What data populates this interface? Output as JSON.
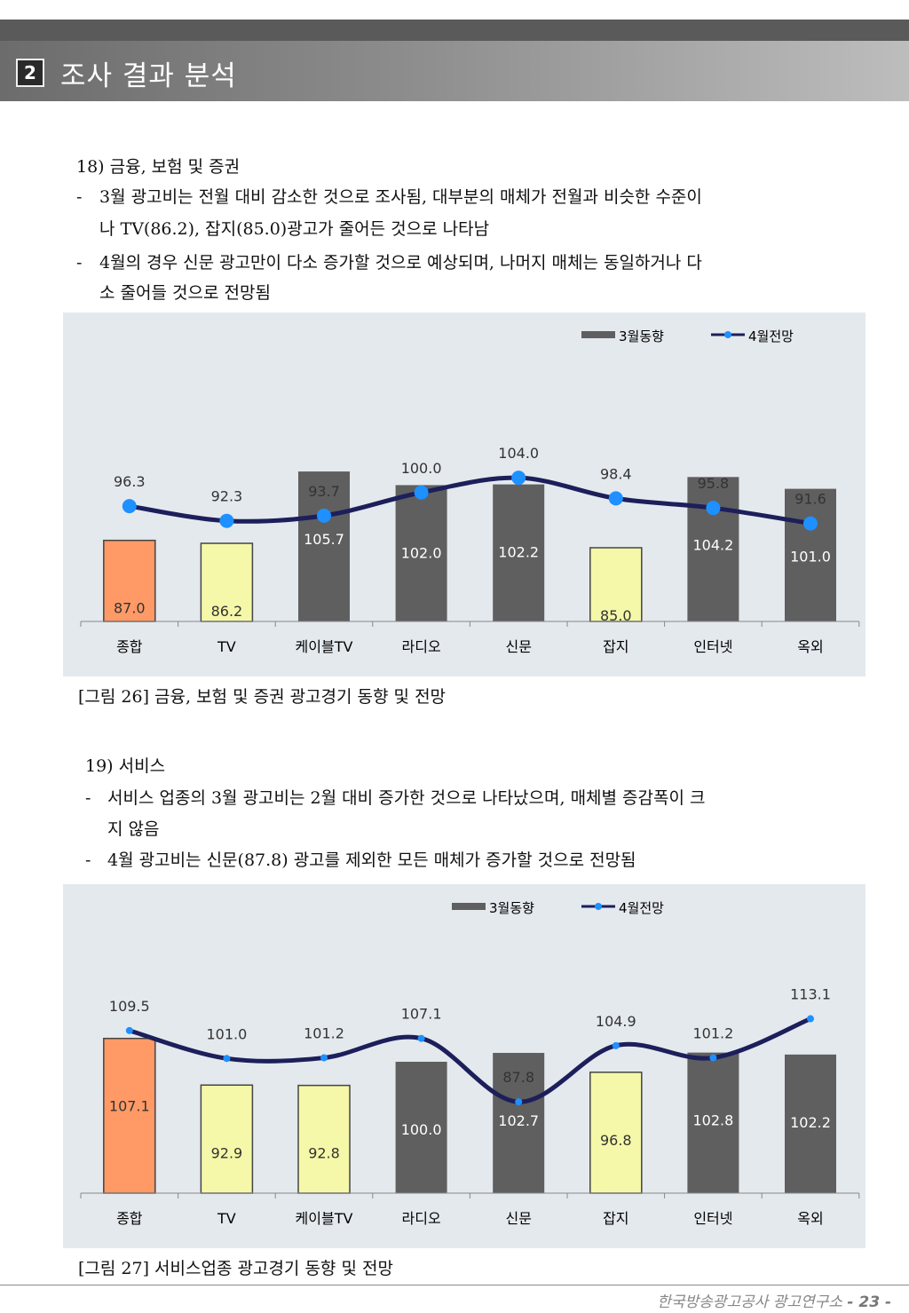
{
  "header": {
    "number": "2",
    "title": "조사 결과 분석"
  },
  "section18": {
    "heading": "18) 금융, 보험 및 증권",
    "bullet1_line1": "3월 광고비는 전월 대비 감소한 것으로 조사됨, 대부분의 매체가 전월과 비슷한 수준이",
    "bullet1_line2": "나 TV(86.2), 잡지(85.0)광고가 줄어든 것으로 나타남",
    "bullet2_line1": "4월의 경우 신문 광고만이 다소 증가할 것으로 예상되며, 나머지 매체는 동일하거나 다",
    "bullet2_line2": "소 줄어들 것으로 전망됨",
    "caption": "[그림 26] 금융, 보험 및 증권 광고경기 동향 및 전망"
  },
  "section19": {
    "heading": "19) 서비스",
    "bullet1_line1": "서비스 업종의 3월 광고비는 2월 대비 증가한 것으로 나타났으며, 매체별 증감폭이 크",
    "bullet1_line2": "지 않음",
    "bullet2_line1": "4월 광고비는 신문(87.8) 광고를 제외한 모든 매체가 증가할 것으로 전망됨",
    "caption": "[그림 27] 서비스업종 광고경기 동향 및 전망"
  },
  "bullet_dash": "-",
  "footer": {
    "org": "한국방송광고공사 광고연구소",
    "page": "- 23 -"
  },
  "colors": {
    "dark_bar": "#5f5f5f",
    "orange_bar": "#ff9a66",
    "yellow_bar": "#f5f8a8",
    "line": "#1c1f5a",
    "marker": "#1e90ff"
  },
  "chart_data": [
    {
      "type": "bar",
      "title": "[그림 26] 금융, 보험 및 증권 광고경기 동향 및 전망",
      "categories": [
        "종합",
        "TV",
        "케이블TV",
        "라디오",
        "신문",
        "잡지",
        "인터넷",
        "옥외"
      ],
      "series": [
        {
          "name": "3월동향",
          "kind": "bar",
          "values": [
            87.0,
            86.2,
            105.7,
            102.0,
            102.2,
            85.0,
            104.2,
            101.0
          ],
          "bar_colors": [
            "orange",
            "yellow",
            "dark",
            "dark",
            "dark",
            "yellow",
            "dark",
            "dark"
          ]
        },
        {
          "name": "4월전망",
          "kind": "line",
          "values": [
            96.3,
            92.3,
            93.7,
            100.0,
            104.0,
            98.4,
            95.8,
            91.6
          ]
        }
      ],
      "legend": "top-right"
    },
    {
      "type": "bar",
      "title": "[그림 27] 서비스업종 광고경기 동향 및 전망",
      "categories": [
        "종합",
        "TV",
        "케이블TV",
        "라디오",
        "신문",
        "잡지",
        "인터넷",
        "옥외"
      ],
      "series": [
        {
          "name": "3월동향",
          "kind": "bar",
          "values": [
            107.1,
            92.9,
            92.8,
            100.0,
            102.7,
            96.8,
            102.8,
            102.2
          ],
          "bar_colors": [
            "orange",
            "yellow",
            "yellow",
            "dark",
            "dark",
            "yellow",
            "dark",
            "dark"
          ]
        },
        {
          "name": "4월전망",
          "kind": "line",
          "values": [
            109.5,
            101.0,
            101.2,
            107.1,
            87.8,
            104.9,
            101.2,
            113.1
          ]
        }
      ],
      "legend": "top-right"
    }
  ]
}
